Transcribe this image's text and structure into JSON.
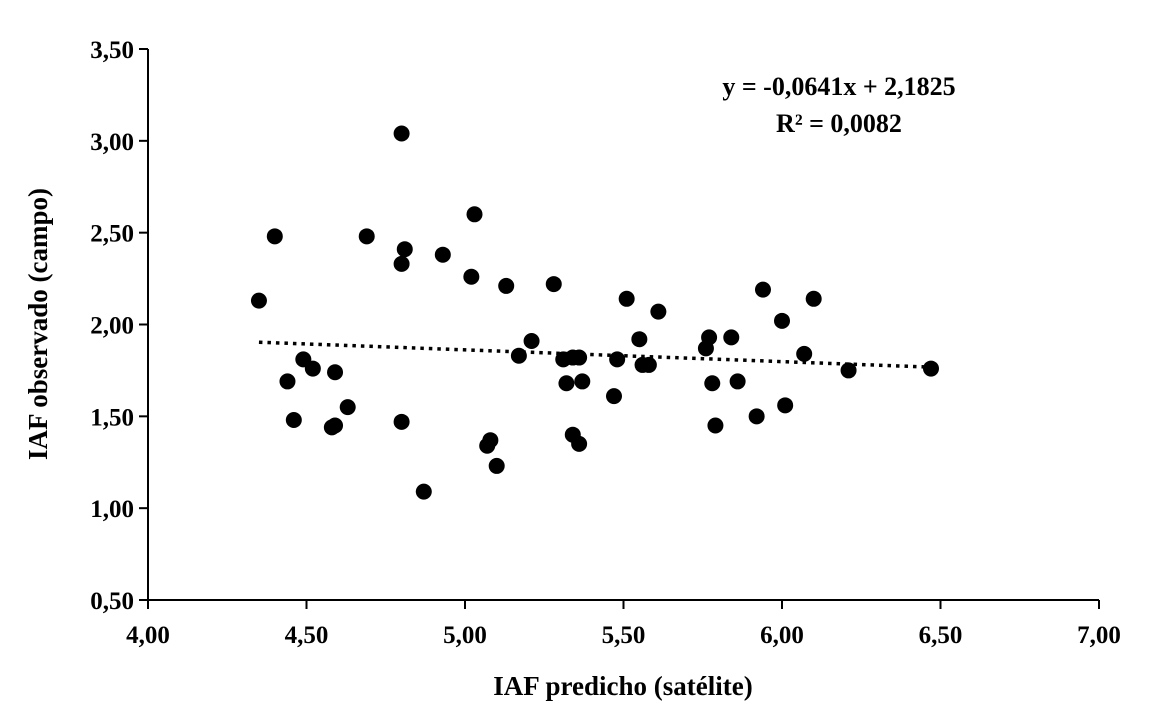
{
  "chart_data": {
    "type": "scatter",
    "xlabel": "IAF predicho (satélite)",
    "ylabel": "IAF observado (campo)",
    "xlim": [
      4.0,
      7.0
    ],
    "ylim": [
      0.5,
      3.5
    ],
    "x_ticks": [
      4.0,
      4.5,
      5.0,
      5.5,
      6.0,
      6.5,
      7.0
    ],
    "y_ticks": [
      0.5,
      1.0,
      1.5,
      2.0,
      2.5,
      3.0,
      3.5
    ],
    "x_tick_labels": [
      "4,00",
      "4,50",
      "5,00",
      "5,50",
      "6,00",
      "6,50",
      "7,00"
    ],
    "y_tick_labels": [
      "0,50",
      "1,00",
      "1,50",
      "2,00",
      "2,50",
      "3,00",
      "3,50"
    ],
    "grid": false,
    "legend": "none",
    "marker_color": "#000000",
    "trendline": {
      "style": "dotted",
      "slope": -0.0641,
      "intercept": 2.1825,
      "x_range": [
        4.35,
        6.47
      ],
      "equation": "y = -0,0641x + 2,1825",
      "r_squared": "R² = 0,0082"
    },
    "series": [
      {
        "points": [
          [
            4.35,
            2.13
          ],
          [
            4.4,
            2.48
          ],
          [
            4.44,
            1.69
          ],
          [
            4.46,
            1.48
          ],
          [
            4.49,
            1.81
          ],
          [
            4.52,
            1.76
          ],
          [
            4.58,
            1.44
          ],
          [
            4.59,
            1.45
          ],
          [
            4.59,
            1.74
          ],
          [
            4.63,
            1.55
          ],
          [
            4.69,
            2.48
          ],
          [
            4.8,
            3.04
          ],
          [
            4.8,
            2.33
          ],
          [
            4.81,
            2.41
          ],
          [
            4.8,
            1.47
          ],
          [
            4.87,
            1.09
          ],
          [
            4.93,
            2.38
          ],
          [
            5.02,
            2.26
          ],
          [
            5.03,
            2.6
          ],
          [
            5.07,
            1.34
          ],
          [
            5.08,
            1.37
          ],
          [
            5.1,
            1.23
          ],
          [
            5.13,
            2.21
          ],
          [
            5.17,
            1.83
          ],
          [
            5.21,
            1.91
          ],
          [
            5.28,
            2.22
          ],
          [
            5.31,
            1.81
          ],
          [
            5.32,
            1.68
          ],
          [
            5.34,
            1.82
          ],
          [
            5.34,
            1.4
          ],
          [
            5.36,
            1.35
          ],
          [
            5.36,
            1.82
          ],
          [
            5.37,
            1.69
          ],
          [
            5.47,
            1.61
          ],
          [
            5.48,
            1.81
          ],
          [
            5.51,
            2.14
          ],
          [
            5.55,
            1.92
          ],
          [
            5.56,
            1.78
          ],
          [
            5.58,
            1.78
          ],
          [
            5.61,
            2.07
          ],
          [
            5.76,
            1.87
          ],
          [
            5.77,
            1.93
          ],
          [
            5.78,
            1.68
          ],
          [
            5.79,
            1.45
          ],
          [
            5.84,
            1.93
          ],
          [
            5.86,
            1.69
          ],
          [
            5.92,
            1.5
          ],
          [
            5.94,
            2.19
          ],
          [
            6.0,
            2.02
          ],
          [
            6.01,
            1.56
          ],
          [
            6.07,
            1.84
          ],
          [
            6.1,
            2.14
          ],
          [
            6.21,
            1.75
          ],
          [
            6.47,
            1.76
          ]
        ]
      }
    ]
  }
}
